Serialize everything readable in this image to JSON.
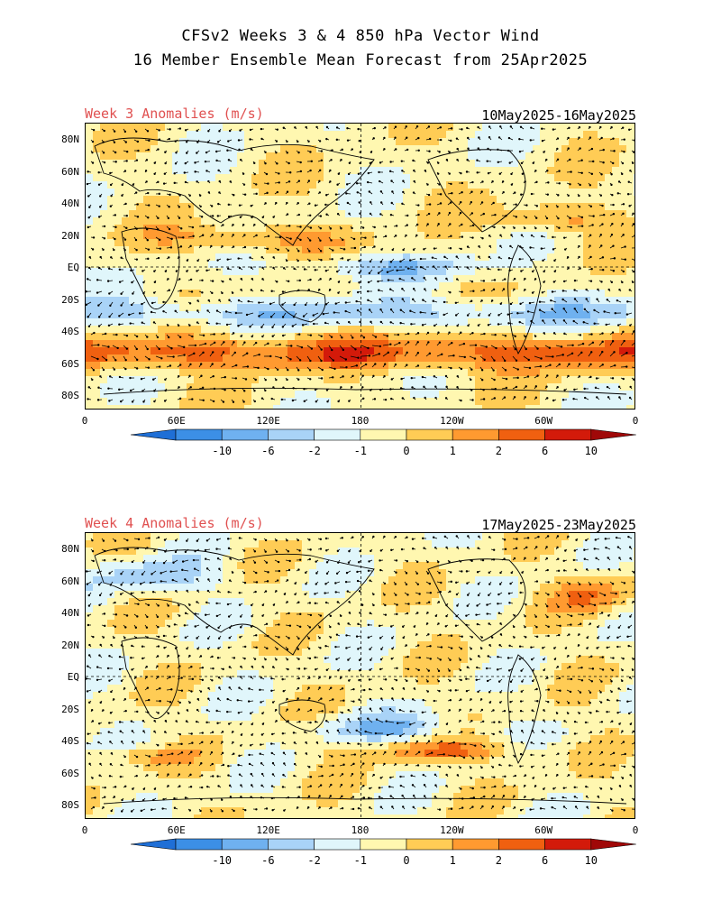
{
  "title_line1": "CFSv2 Weeks 3 & 4 850 hPa Vector Wind",
  "title_line2": "16 Member Ensemble Mean Forecast from 25Apr2025",
  "panels": [
    {
      "label": "Week 3 Anomalies (m/s)",
      "dates": "10May2025-16May2025"
    },
    {
      "label": "Week 4 Anomalies (m/s)",
      "dates": "17May2025-23May2025"
    }
  ],
  "lat_labels": [
    "80N",
    "60N",
    "40N",
    "20N",
    "EQ",
    "20S",
    "40S",
    "60S",
    "80S"
  ],
  "lon_labels": [
    "0",
    "60E",
    "120E",
    "180",
    "120W",
    "60W",
    "0"
  ],
  "colorbar": {
    "labels": [
      "-10",
      "-6",
      "-2",
      "-1",
      "0",
      "1",
      "2",
      "6",
      "10"
    ],
    "colors": [
      "#1f6fd6",
      "#3c8fe6",
      "#6fb1f0",
      "#a9d3f7",
      "#e0f6fb",
      "#fff7b0",
      "#ffcc55",
      "#ff9a30",
      "#f06010",
      "#d31a0a",
      "#a00808"
    ]
  }
}
